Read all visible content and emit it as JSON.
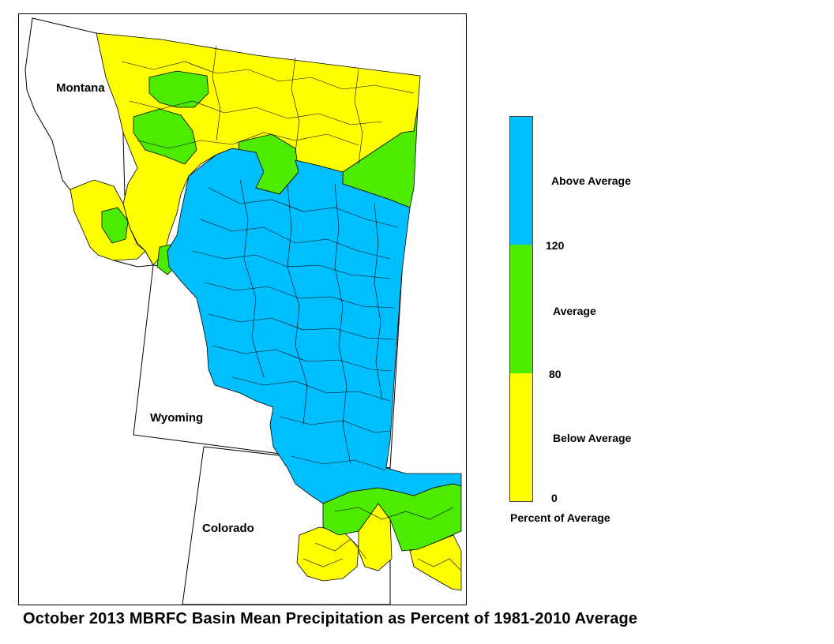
{
  "colors": {
    "above": "#00BFFF",
    "average": "#4CEB00",
    "below": "#FFFF00",
    "boundary": "#000000"
  },
  "map": {
    "states": [
      "Montana",
      "Wyoming",
      "Colorado"
    ]
  },
  "legend": {
    "classes": [
      {
        "label": "Above Average",
        "color": "#00BFFF",
        "range": "120+"
      },
      {
        "label": "Average",
        "color": "#4CEB00",
        "range": "80-120"
      },
      {
        "label": "Below Average",
        "color": "#FFFF00",
        "range": "0-80"
      }
    ],
    "ticks": [
      "120",
      "80",
      "0"
    ],
    "title": "Percent of Average"
  },
  "caption": "October 2013 MBRFC Basin Mean Precipitation as Percent of 1981-2010 Average"
}
